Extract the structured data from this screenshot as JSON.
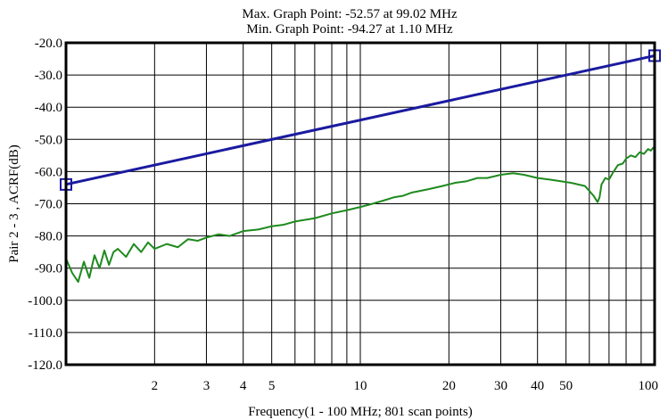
{
  "chart_data": {
    "type": "line",
    "title_lines": [
      "Max. Graph Point: -52.57 at 99.02 MHz",
      "Min. Graph Point: -94.27 at 1.10 MHz"
    ],
    "xlabel": "Frequency(1 - 100 MHz; 801 scan points)",
    "ylabel": "Pair 2 - 3 , ACRF(dB)",
    "x_scale": "log",
    "xlim": [
      1,
      100
    ],
    "ylim": [
      -120,
      -20
    ],
    "x_tick_labels": [
      {
        "value": 2,
        "label": "2"
      },
      {
        "value": 3,
        "label": "3"
      },
      {
        "value": 4,
        "label": "4"
      },
      {
        "value": 5,
        "label": "5"
      },
      {
        "value": 10,
        "label": "10"
      },
      {
        "value": 20,
        "label": "20"
      },
      {
        "value": 30,
        "label": "30"
      },
      {
        "value": 40,
        "label": "40"
      },
      {
        "value": 50,
        "label": "50"
      },
      {
        "value": 100,
        "label": "100"
      }
    ],
    "y_ticks": [
      -20,
      -30,
      -40,
      -50,
      -60,
      -70,
      -80,
      -90,
      -100,
      -110,
      -120
    ],
    "y_tick_labels": [
      "-20.0",
      "-30.0",
      "-40.0",
      "-50.0",
      "-60.0",
      "-70.0",
      "-80.0",
      "-90.0",
      "-100.0",
      "-110.0",
      "-120.0"
    ],
    "grid": true,
    "series": [
      {
        "color": "#1a1aa0",
        "style": "limit",
        "markers": "square-endpoints",
        "x": [
          1,
          100
        ],
        "y": [
          -64.0,
          -24.0
        ]
      },
      {
        "color": "#1e8a1e",
        "style": "measured",
        "x": [
          1.0,
          1.05,
          1.1,
          1.15,
          1.2,
          1.25,
          1.3,
          1.35,
          1.4,
          1.45,
          1.5,
          1.6,
          1.7,
          1.8,
          1.9,
          2.0,
          2.2,
          2.4,
          2.6,
          2.8,
          3.0,
          3.3,
          3.6,
          4.0,
          4.5,
          5.0,
          5.5,
          6.0,
          7.0,
          8.0,
          9.0,
          10.0,
          11.0,
          12.0,
          13.0,
          14.0,
          15.0,
          17.0,
          19.0,
          21.0,
          23.0,
          25.0,
          27.0,
          30.0,
          33.0,
          36.0,
          40.0,
          44.0,
          48.0,
          52.0,
          55.0,
          58.0,
          60.0,
          62.0,
          64.0,
          65.0,
          66.0,
          68.0,
          70.0,
          72.0,
          75.0,
          78.0,
          80.0,
          83.0,
          86.0,
          89.0,
          92.0,
          95.0,
          97.0,
          99.02,
          100.0
        ],
        "y": [
          -87.0,
          -91.5,
          -94.27,
          -88.0,
          -93.0,
          -86.0,
          -90.0,
          -84.5,
          -89.0,
          -85.0,
          -84.0,
          -86.5,
          -82.5,
          -85.0,
          -82.0,
          -84.0,
          -82.5,
          -83.5,
          -81.0,
          -81.5,
          -80.5,
          -79.5,
          -80.0,
          -78.5,
          -78.0,
          -77.0,
          -76.5,
          -75.5,
          -74.5,
          -73.0,
          -72.0,
          -71.0,
          -70.0,
          -69.0,
          -68.0,
          -67.5,
          -66.5,
          -65.5,
          -64.5,
          -63.5,
          -63.0,
          -62.0,
          -62.0,
          -61.0,
          -60.5,
          -61.0,
          -62.0,
          -62.5,
          -63.0,
          -63.5,
          -64.0,
          -64.5,
          -66.0,
          -67.5,
          -69.5,
          -68.0,
          -64.0,
          -62.0,
          -62.5,
          -60.5,
          -58.0,
          -57.5,
          -56.0,
          -55.0,
          -55.5,
          -54.0,
          -54.5,
          -53.0,
          -53.5,
          -52.57,
          -53.0
        ]
      }
    ]
  }
}
